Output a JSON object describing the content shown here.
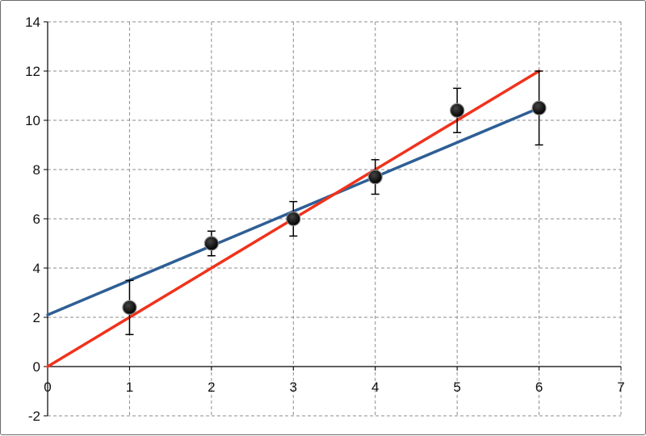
{
  "chart_data": {
    "type": "scatter",
    "title": "",
    "xlabel": "",
    "ylabel": "",
    "xlim": [
      0,
      7
    ],
    "ylim": [
      -2,
      14
    ],
    "x_ticks": [
      "0",
      "1",
      "2",
      "3",
      "4",
      "5",
      "6",
      "7"
    ],
    "y_ticks": [
      "-2",
      "0",
      "2",
      "4",
      "6",
      "8",
      "10",
      "12",
      "14"
    ],
    "grid": true,
    "points": [
      {
        "x": 1,
        "y": 2.4,
        "err_low": 1.3,
        "err_high": 3.5
      },
      {
        "x": 2,
        "y": 5.0,
        "err_low": 4.5,
        "err_high": 5.5
      },
      {
        "x": 3,
        "y": 6.0,
        "err_low": 5.3,
        "err_high": 6.7
      },
      {
        "x": 4,
        "y": 7.7,
        "err_low": 7.0,
        "err_high": 8.4
      },
      {
        "x": 5,
        "y": 10.4,
        "err_low": 9.5,
        "err_high": 11.3
      },
      {
        "x": 6,
        "y": 10.5,
        "err_low": 9.0,
        "err_high": 12.0
      }
    ],
    "lines": [
      {
        "color": "#2e5f95",
        "x": [
          0,
          6
        ],
        "y": [
          2.1,
          10.5
        ]
      },
      {
        "color": "#f0321c",
        "x": [
          0,
          6
        ],
        "y": [
          0,
          12
        ]
      }
    ],
    "colors": {
      "points": "#000000",
      "errorbars": "#000000",
      "grid": "#8c8c8c",
      "axis": "#000000"
    }
  }
}
